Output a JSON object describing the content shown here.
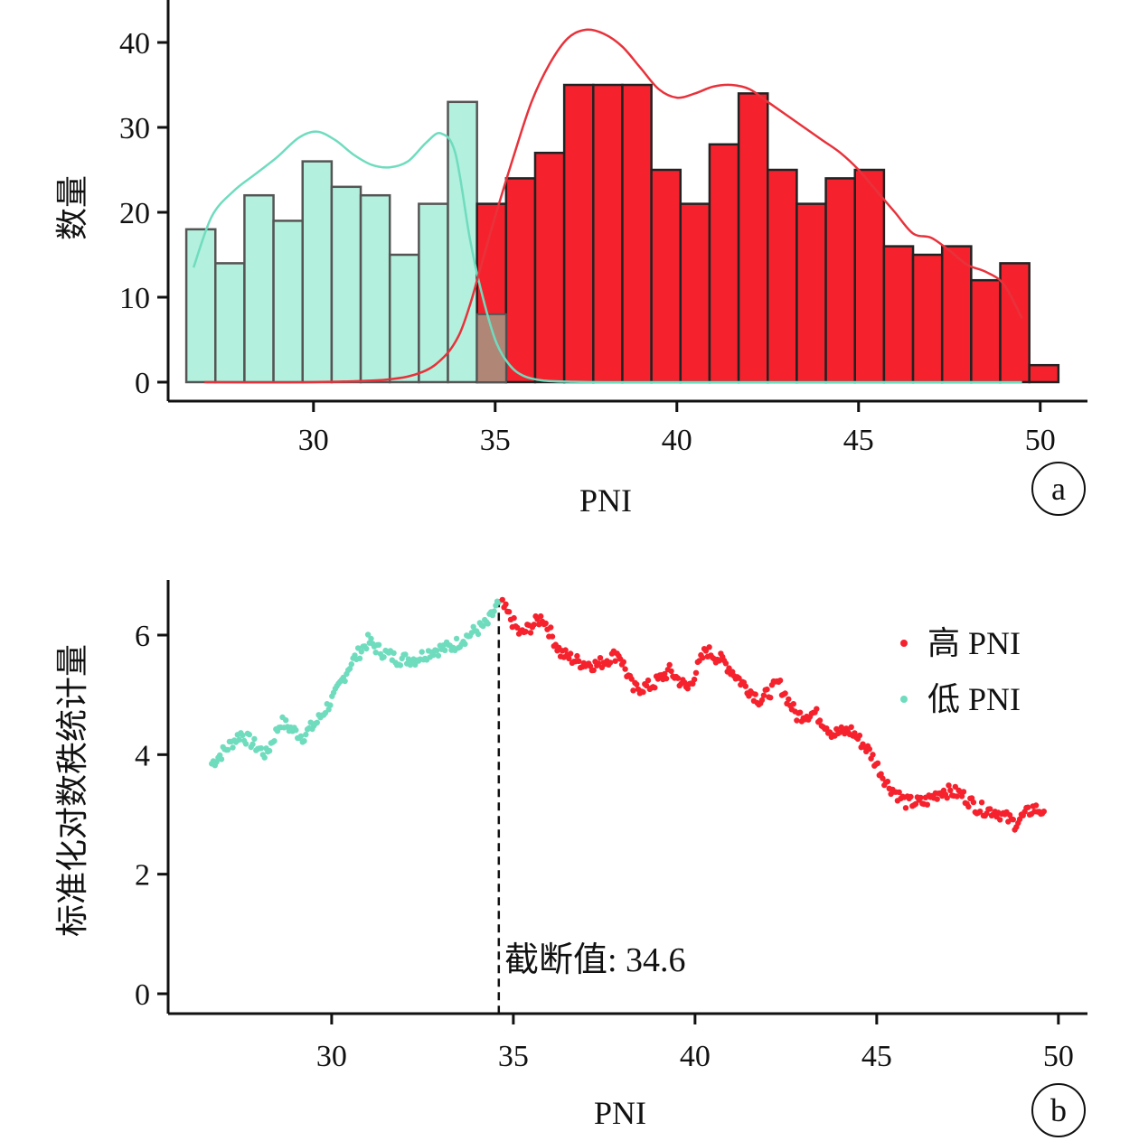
{
  "chart_data": [
    {
      "panel_label": "a",
      "type": "bar",
      "xlabel": "PNI",
      "ylabel": "数量",
      "xlim": [
        26,
        51.3
      ],
      "ylim": [
        0,
        45
      ],
      "xticks": [
        30,
        35,
        40,
        45,
        50
      ],
      "yticks": [
        0,
        10,
        20,
        30,
        40
      ],
      "colors": {
        "low": "#b3f0dd",
        "high": "#f5222d",
        "overlap": "#b08677",
        "low_curve": "#6fdcbe",
        "high_curve": "#e8323b",
        "edge": "#555555"
      },
      "low_series": {
        "bins": [
          [
            26.5,
            27.3
          ],
          [
            27.3,
            28.1
          ],
          [
            28.1,
            28.9
          ],
          [
            28.9,
            29.7
          ],
          [
            29.7,
            30.5
          ],
          [
            30.5,
            31.3
          ],
          [
            31.3,
            32.1
          ],
          [
            32.1,
            32.9
          ],
          [
            32.9,
            33.7
          ],
          [
            33.7,
            34.5
          ],
          [
            34.5,
            35.3
          ]
        ],
        "counts": [
          18,
          14,
          22,
          19,
          26,
          23,
          22,
          15,
          21,
          33,
          8
        ]
      },
      "high_series": {
        "bins": [
          [
            34.5,
            35.3
          ],
          [
            35.3,
            36.1
          ],
          [
            36.1,
            36.9
          ],
          [
            36.9,
            37.7
          ],
          [
            37.7,
            38.5
          ],
          [
            38.5,
            39.3
          ],
          [
            39.3,
            40.1
          ],
          [
            40.1,
            40.9
          ],
          [
            40.9,
            41.7
          ],
          [
            41.7,
            42.5
          ],
          [
            42.5,
            43.3
          ],
          [
            43.3,
            44.1
          ],
          [
            44.1,
            44.9
          ],
          [
            44.9,
            45.7
          ],
          [
            45.7,
            46.5
          ],
          [
            46.5,
            47.3
          ],
          [
            47.3,
            48.1
          ],
          [
            48.1,
            48.9
          ],
          [
            48.9,
            49.7
          ],
          [
            49.7,
            50.5
          ]
        ],
        "counts": [
          21,
          24,
          27,
          35,
          35,
          35,
          25,
          21,
          28,
          34,
          25,
          21,
          24,
          25,
          16,
          15,
          16,
          12,
          14,
          2
        ]
      },
      "low_curve": {
        "x": [
          26.7,
          27.2,
          27.8,
          28.4,
          29.0,
          29.6,
          30.1,
          30.6,
          31.1,
          31.6,
          32.1,
          32.6,
          33.1,
          33.5,
          33.9,
          34.3,
          34.6,
          35.0,
          35.4,
          35.8,
          36.3,
          37.0,
          38.0,
          40.0,
          45.0,
          49.5
        ],
        "y": [
          13.5,
          19.5,
          22.5,
          24.5,
          26.5,
          28.8,
          29.5,
          28.5,
          26.8,
          25.6,
          25.3,
          26.0,
          28.2,
          29.3,
          27.0,
          17.0,
          11.0,
          5.0,
          2.0,
          0.7,
          0.2,
          0.05,
          0.0,
          0.0,
          0.0,
          0.0
        ]
      },
      "high_curve": {
        "x": [
          27.0,
          30.0,
          32.0,
          33.0,
          33.6,
          34.0,
          34.3,
          34.6,
          35.0,
          35.5,
          36.0,
          36.5,
          37.0,
          37.5,
          38.0,
          38.5,
          39.0,
          39.5,
          40.0,
          40.5,
          41.0,
          41.5,
          42.0,
          42.5,
          43.0,
          43.5,
          44.0,
          44.5,
          45.0,
          45.5,
          46.0,
          46.5,
          47.0,
          47.5,
          48.0,
          48.5,
          49.0,
          49.5
        ],
        "y": [
          0.0,
          0.0,
          0.3,
          1.2,
          3.0,
          5.5,
          9.0,
          13.5,
          19.5,
          26.5,
          33.0,
          37.5,
          40.5,
          41.5,
          41.0,
          39.5,
          37.0,
          34.5,
          33.5,
          34.0,
          34.8,
          35.0,
          34.5,
          33.0,
          31.5,
          30.0,
          28.5,
          27.0,
          25.0,
          22.5,
          20.0,
          17.5,
          17.0,
          15.5,
          13.8,
          13.0,
          11.5,
          7.5
        ]
      }
    },
    {
      "panel_label": "b",
      "type": "scatter",
      "xlabel": "PNI",
      "ylabel": "标准化对数秩统计量",
      "xlim": [
        25.5,
        50.8
      ],
      "ylim": [
        -0.3,
        6.9
      ],
      "xticks": [
        30,
        35,
        40,
        45,
        50
      ],
      "yticks": [
        0,
        2,
        4,
        6
      ],
      "cutoff": {
        "x": 34.6,
        "label": "截断值: 34.6"
      },
      "legend": {
        "position": "top-right",
        "entries": [
          "高 PNI",
          "低 PNI"
        ]
      },
      "series": [
        {
          "name": "低 PNI",
          "color": "#6fdcbe",
          "x": [
            26.7,
            27.5,
            28.2,
            28.6,
            29.2,
            29.6,
            30.1,
            30.5,
            31.0,
            31.3,
            31.8,
            32.3,
            32.8,
            33.3,
            33.9,
            34.3,
            34.6
          ],
          "y": [
            3.85,
            4.35,
            4.0,
            4.55,
            4.3,
            4.55,
            5.0,
            5.5,
            5.9,
            5.75,
            5.6,
            5.6,
            5.75,
            5.8,
            6.05,
            6.2,
            6.55
          ]
        },
        {
          "name": "高 PNI",
          "color": "#f5222d",
          "x": [
            34.7,
            35.2,
            35.8,
            36.3,
            36.8,
            37.3,
            37.9,
            38.3,
            38.8,
            39.3,
            39.8,
            40.3,
            40.8,
            41.3,
            41.8,
            42.3,
            42.8,
            43.3,
            43.8,
            44.3,
            44.8,
            45.3,
            45.8,
            46.3,
            46.8,
            47.3,
            47.8,
            48.3,
            48.8,
            49.3,
            49.6
          ],
          "y": [
            6.5,
            6.0,
            6.3,
            5.7,
            5.55,
            5.5,
            5.7,
            5.1,
            5.15,
            5.4,
            5.1,
            5.75,
            5.55,
            5.2,
            4.9,
            5.2,
            4.65,
            4.7,
            4.35,
            4.4,
            4.05,
            3.5,
            3.2,
            3.2,
            3.4,
            3.35,
            3.1,
            3.05,
            2.85,
            3.1,
            3.05
          ]
        }
      ]
    }
  ]
}
